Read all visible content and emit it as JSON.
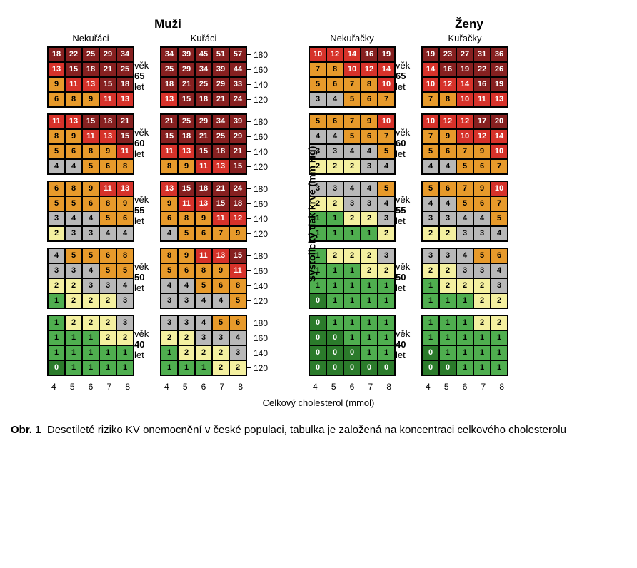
{
  "figure_label": "Obr. 1",
  "caption": "Desetileté riziko KV onemocnění v české populaci, tabulka je založená na koncentraci celkového cholesterolu",
  "header_men": "Muži",
  "header_women": "Ženy",
  "sub_m_ns": "Nekuřáci",
  "sub_m_s": "Kuřáci",
  "sub_f_ns": "Nekuřačky",
  "sub_f_s": "Kuřačky",
  "age_word": "věk",
  "age_unit": "let",
  "ages": [
    65,
    60,
    55,
    50,
    40
  ],
  "y_axis_label": "Systolický tlak krve (mm Hg)",
  "y_ticks": [
    180,
    160,
    140,
    120
  ],
  "x_axis_label": "Celkový cholesterol (mmol)",
  "x_ticks": [
    4,
    5,
    6,
    7,
    8
  ],
  "risk_colors": {
    "darkgreen": "#2b7b2b",
    "green": "#4fae4f",
    "yellow": "#f4f0a0",
    "grey": "#b8b8b8",
    "orange": "#e79a2b",
    "red": "#d6322a",
    "darkred": "#862020"
  },
  "text_on_dark": "#ffffff",
  "text_on_light": "#000000",
  "dark_bgs": [
    "red",
    "darkred",
    "darkgreen"
  ],
  "color_thresholds_note": "risk-to-color approximated from screenshot: 0→darkgreen, 1→green, 2→yellow, 3-4→grey, 5-9→orange, 10-14→red, ≥15→darkred; some cells override per image",
  "panels": {
    "m_ns": [
      [
        [
          18,
          22,
          25,
          29,
          34
        ],
        [
          13,
          15,
          18,
          21,
          25
        ],
        [
          9,
          11,
          13,
          15,
          18
        ],
        [
          6,
          8,
          9,
          11,
          13
        ]
      ],
      [
        [
          11,
          13,
          15,
          18,
          21
        ],
        [
          8,
          9,
          11,
          13,
          15
        ],
        [
          5,
          6,
          8,
          9,
          11
        ],
        [
          4,
          4,
          5,
          6,
          8
        ]
      ],
      [
        [
          6,
          8,
          9,
          11,
          13
        ],
        [
          5,
          5,
          6,
          8,
          9
        ],
        [
          3,
          4,
          4,
          5,
          6
        ],
        [
          2,
          3,
          3,
          4,
          4
        ]
      ],
      [
        [
          4,
          5,
          5,
          6,
          8
        ],
        [
          3,
          3,
          4,
          5,
          5
        ],
        [
          2,
          2,
          3,
          3,
          4
        ],
        [
          1,
          2,
          2,
          2,
          3
        ]
      ],
      [
        [
          1,
          2,
          2,
          2,
          3
        ],
        [
          1,
          1,
          1,
          2,
          2
        ],
        [
          1,
          1,
          1,
          1,
          1
        ],
        [
          0,
          1,
          1,
          1,
          1
        ]
      ]
    ],
    "m_s": [
      [
        [
          34,
          39,
          45,
          51,
          57
        ],
        [
          25,
          29,
          34,
          39,
          44
        ],
        [
          18,
          21,
          25,
          29,
          33
        ],
        [
          13,
          15,
          18,
          21,
          24
        ]
      ],
      [
        [
          21,
          25,
          29,
          34,
          39
        ],
        [
          15,
          18,
          21,
          25,
          29
        ],
        [
          11,
          13,
          15,
          18,
          21
        ],
        [
          8,
          9,
          11,
          13,
          15
        ]
      ],
      [
        [
          13,
          15,
          18,
          21,
          24
        ],
        [
          9,
          11,
          13,
          15,
          18
        ],
        [
          6,
          8,
          9,
          11,
          12
        ],
        [
          4,
          5,
          6,
          7,
          9
        ]
      ],
      [
        [
          8,
          9,
          11,
          13,
          15
        ],
        [
          5,
          6,
          8,
          9,
          11
        ],
        [
          4,
          4,
          5,
          6,
          8
        ],
        [
          3,
          3,
          4,
          4,
          5
        ]
      ],
      [
        [
          3,
          3,
          4,
          5,
          6
        ],
        [
          2,
          2,
          3,
          3,
          4
        ],
        [
          1,
          2,
          2,
          2,
          3
        ],
        [
          1,
          1,
          1,
          2,
          2
        ]
      ]
    ],
    "f_ns": [
      [
        [
          10,
          12,
          14,
          16,
          19
        ],
        [
          7,
          8,
          10,
          12,
          14
        ],
        [
          5,
          6,
          7,
          8,
          10
        ],
        [
          3,
          4,
          5,
          6,
          7
        ]
      ],
      [
        [
          5,
          6,
          7,
          9,
          10
        ],
        [
          4,
          4,
          5,
          6,
          7
        ],
        [
          3,
          3,
          4,
          4,
          5
        ],
        [
          2,
          2,
          2,
          3,
          4
        ]
      ],
      [
        [
          3,
          3,
          4,
          4,
          5
        ],
        [
          2,
          2,
          3,
          3,
          4
        ],
        [
          1,
          1,
          2,
          2,
          3
        ],
        [
          1,
          1,
          1,
          1,
          2
        ]
      ],
      [
        [
          1,
          2,
          2,
          2,
          3
        ],
        [
          1,
          1,
          1,
          2,
          2
        ],
        [
          1,
          1,
          1,
          1,
          1
        ],
        [
          0,
          1,
          1,
          1,
          1
        ]
      ],
      [
        [
          0,
          1,
          1,
          1,
          1
        ],
        [
          0,
          0,
          1,
          1,
          1
        ],
        [
          0,
          0,
          0,
          1,
          1
        ],
        [
          0,
          0,
          0,
          0,
          0
        ]
      ]
    ],
    "f_s": [
      [
        [
          19,
          23,
          27,
          31,
          36
        ],
        [
          14,
          16,
          19,
          22,
          26
        ],
        [
          10,
          12,
          14,
          16,
          19
        ],
        [
          7,
          8,
          10,
          11,
          13
        ]
      ],
      [
        [
          10,
          12,
          12,
          17,
          20
        ],
        [
          7,
          9,
          10,
          12,
          14
        ],
        [
          5,
          6,
          7,
          9,
          10
        ],
        [
          4,
          4,
          5,
          6,
          7
        ]
      ],
      [
        [
          5,
          6,
          7,
          9,
          10
        ],
        [
          4,
          4,
          5,
          6,
          7
        ],
        [
          3,
          3,
          4,
          4,
          5
        ],
        [
          2,
          2,
          3,
          3,
          4
        ]
      ],
      [
        [
          3,
          3,
          4,
          5,
          6
        ],
        [
          2,
          2,
          3,
          3,
          4
        ],
        [
          1,
          2,
          2,
          2,
          3
        ],
        [
          1,
          1,
          1,
          2,
          2
        ]
      ],
      [
        [
          1,
          1,
          1,
          2,
          2
        ],
        [
          1,
          1,
          1,
          1,
          1
        ],
        [
          0,
          1,
          1,
          1,
          1
        ],
        [
          0,
          0,
          1,
          1,
          1
        ]
      ]
    ]
  },
  "overrides_note": "specific cell color overrides matching screenshot where threshold rule differs",
  "overrides": {
    "m_ns": {
      "3-2-4": "grey",
      "4-3-0": "darkgreen"
    },
    "m_s": {
      "4-3-0": "green"
    },
    "f_ns": {
      "2-3-4": "yellow",
      "4-0-0": "darkgreen",
      "4-1-0": "darkgreen",
      "4-1-1": "darkgreen",
      "4-2-0": "darkgreen",
      "4-2-1": "darkgreen",
      "4-2-2": "darkgreen",
      "4-3-0": "darkgreen",
      "4-3-1": "darkgreen",
      "4-3-2": "darkgreen",
      "4-3-3": "darkgreen",
      "4-3-4": "darkgreen"
    },
    "f_s": {
      "4-2-0": "darkgreen",
      "4-3-0": "darkgreen",
      "4-3-1": "darkgreen"
    }
  }
}
